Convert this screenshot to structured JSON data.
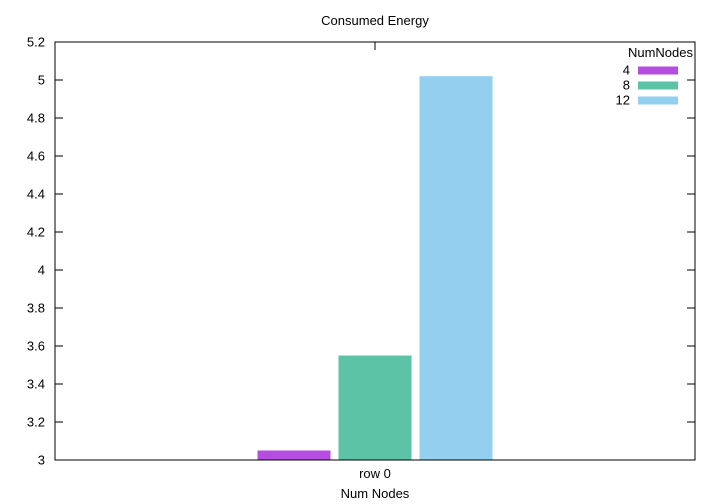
{
  "chart_data": {
    "type": "bar",
    "title": "Consumed Energy",
    "xlabel": "Num Nodes",
    "ylabel": "",
    "categories": [
      "row 0"
    ],
    "ylim": [
      3,
      5.2
    ],
    "yticks": [
      "3",
      "3.2",
      "3.4",
      "3.6",
      "3.8",
      "4",
      "4.2",
      "4.4",
      "4.6",
      "4.8",
      "5",
      "5.2"
    ],
    "grid": false,
    "legend": {
      "title": "NumNodes",
      "placement": "top-right"
    },
    "series": [
      {
        "name": "4",
        "values": [
          3.05
        ],
        "color": "#b44de0"
      },
      {
        "name": "8",
        "values": [
          3.55
        ],
        "color": "#5cc3a6"
      },
      {
        "name": "12",
        "values": [
          5.02
        ],
        "color": "#93cfef"
      }
    ]
  }
}
